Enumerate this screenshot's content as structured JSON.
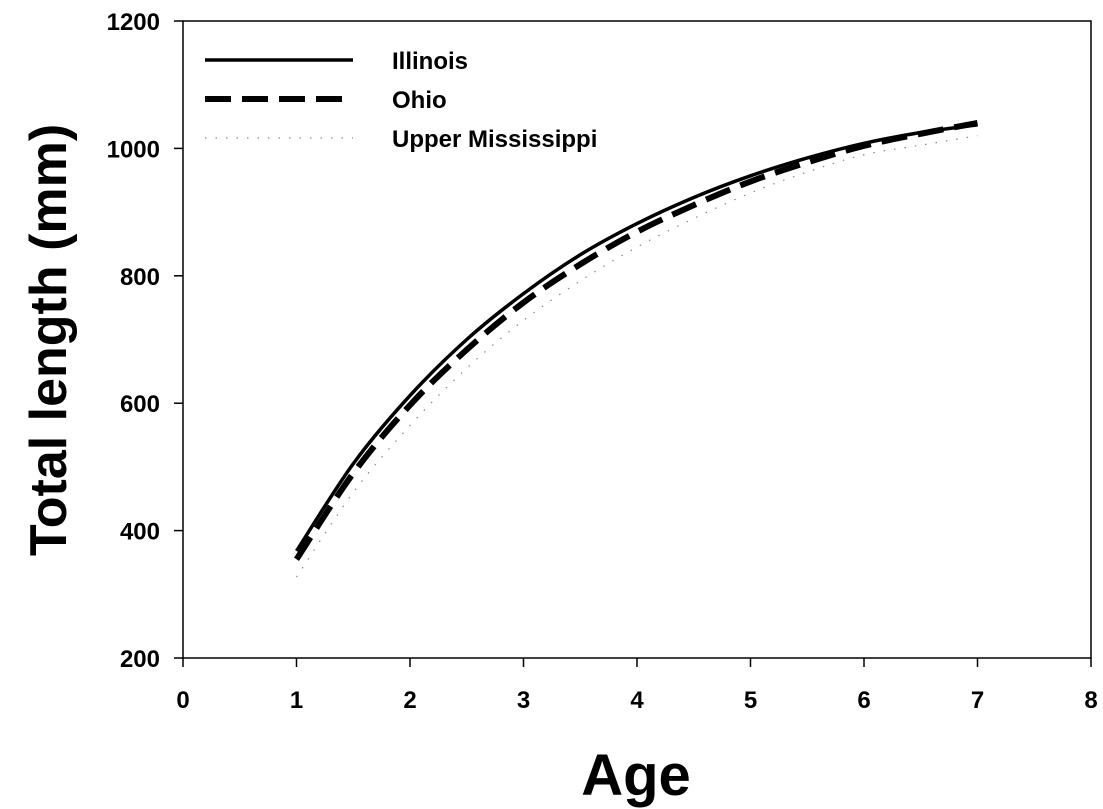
{
  "chart_data": {
    "type": "line",
    "title": "",
    "xlabel": "Age",
    "ylabel": "Total length (mm)",
    "xlim": [
      0,
      8
    ],
    "ylim": [
      200,
      1200
    ],
    "xticks": [
      0,
      1,
      2,
      3,
      4,
      5,
      6,
      7,
      8
    ],
    "yticks": [
      200,
      400,
      600,
      800,
      1000,
      1200
    ],
    "xtick_labels": [
      "0",
      "1",
      "2",
      "3",
      "4",
      "5",
      "6",
      "7",
      "8"
    ],
    "ytick_labels": [
      "200",
      "400",
      "600",
      "800",
      "1000",
      "1200"
    ],
    "grid": false,
    "legend_position": "top-left",
    "x": [
      1,
      1.5,
      2,
      2.5,
      3,
      3.5,
      4,
      4.5,
      5,
      5.5,
      6,
      6.5,
      7
    ],
    "series": [
      {
        "name": "Illinois",
        "style": "solid",
        "color": "#000000",
        "values": [
          368,
          505,
          612,
          700,
          772,
          833,
          882,
          923,
          957,
          985,
          1008,
          1025,
          1037
        ]
      },
      {
        "name": "Ohio",
        "style": "dashed",
        "color": "#000000",
        "values": [
          355,
          490,
          597,
          684,
          758,
          818,
          869,
          911,
          948,
          978,
          1004,
          1023,
          1040
        ]
      },
      {
        "name": "Upper Mississippi",
        "style": "dotted",
        "color": "#888888",
        "values": [
          327,
          460,
          565,
          655,
          730,
          792,
          845,
          890,
          930,
          963,
          990,
          1005,
          1020
        ]
      }
    ]
  }
}
